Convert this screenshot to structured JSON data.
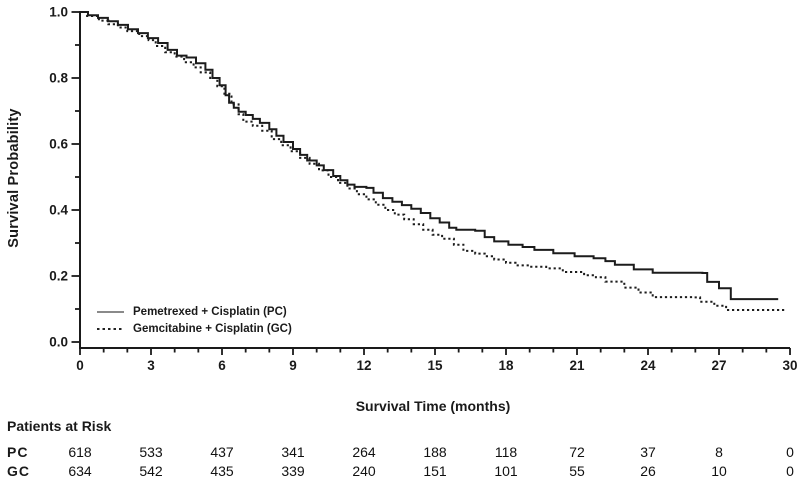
{
  "chart_data": {
    "type": "line",
    "subtype": "kaplan-meier-step",
    "title": "",
    "xlabel": "Survival Time (months)",
    "ylabel": "Survival Probability",
    "xlim": [
      0,
      30
    ],
    "ylim": [
      0.0,
      1.0
    ],
    "grid": false,
    "x_major_ticks": [
      0,
      3,
      6,
      9,
      12,
      15,
      18,
      21,
      24,
      27,
      30
    ],
    "x_minor_step": 1,
    "y_major_tick_labels": [
      "0.0",
      "0.2",
      "0.4",
      "0.6",
      "0.8",
      "1.0"
    ],
    "y_major_ticks": [
      0.0,
      0.2,
      0.4,
      0.6,
      0.8,
      1.0
    ],
    "y_minor_ticks": [
      0.1,
      0.3,
      0.5,
      0.7,
      0.9
    ],
    "legend": {
      "position": "lower-left",
      "entries": [
        {
          "label": "Pemetrexed + Cisplatin (PC)",
          "style": "solid"
        },
        {
          "label": "Gemcitabine + Cisplatin (GC)",
          "style": "dotted"
        }
      ]
    },
    "series": [
      {
        "name": "PC",
        "label": "Pemetrexed + Cisplatin (PC)",
        "style": "solid",
        "points": [
          [
            0,
            1.0
          ],
          [
            0.34,
            0.99
          ],
          [
            0.76,
            0.982
          ],
          [
            1.18,
            0.972
          ],
          [
            1.6,
            0.961
          ],
          [
            2.03,
            0.948
          ],
          [
            2.45,
            0.936
          ],
          [
            2.87,
            0.921
          ],
          [
            3.3,
            0.906
          ],
          [
            3.7,
            0.885
          ],
          [
            4.1,
            0.868
          ],
          [
            4.5,
            0.862
          ],
          [
            4.9,
            0.845
          ],
          [
            5.3,
            0.825
          ],
          [
            5.6,
            0.8
          ],
          [
            5.9,
            0.778
          ],
          [
            6.15,
            0.748
          ],
          [
            6.3,
            0.725
          ],
          [
            6.5,
            0.71
          ],
          [
            6.7,
            0.698
          ],
          [
            7.0,
            0.688
          ],
          [
            7.3,
            0.676
          ],
          [
            7.6,
            0.664
          ],
          [
            8.0,
            0.645
          ],
          [
            8.3,
            0.625
          ],
          [
            8.6,
            0.606
          ],
          [
            9.0,
            0.585
          ],
          [
            9.3,
            0.567
          ],
          [
            9.6,
            0.55
          ],
          [
            10.0,
            0.535
          ],
          [
            10.3,
            0.521
          ],
          [
            10.7,
            0.503
          ],
          [
            11.0,
            0.49
          ],
          [
            11.3,
            0.477
          ],
          [
            11.6,
            0.47
          ],
          [
            12.1,
            0.467
          ],
          [
            12.4,
            0.452
          ],
          [
            12.8,
            0.436
          ],
          [
            13.2,
            0.425
          ],
          [
            13.6,
            0.415
          ],
          [
            14.0,
            0.404
          ],
          [
            14.4,
            0.391
          ],
          [
            14.8,
            0.375
          ],
          [
            15.2,
            0.362
          ],
          [
            15.6,
            0.346
          ],
          [
            15.9,
            0.34
          ],
          [
            16.7,
            0.337
          ],
          [
            17.1,
            0.318
          ],
          [
            17.5,
            0.305
          ],
          [
            18.1,
            0.295
          ],
          [
            18.7,
            0.288
          ],
          [
            19.2,
            0.279
          ],
          [
            20.0,
            0.269
          ],
          [
            20.9,
            0.26
          ],
          [
            21.7,
            0.254
          ],
          [
            22.2,
            0.245
          ],
          [
            22.6,
            0.234
          ],
          [
            23.4,
            0.22
          ],
          [
            24.2,
            0.21
          ],
          [
            26.3,
            0.209
          ],
          [
            26.5,
            0.182
          ],
          [
            27.0,
            0.163
          ],
          [
            27.5,
            0.13
          ],
          [
            29.5,
            0.13
          ]
        ]
      },
      {
        "name": "GC",
        "label": "Gemcitabine + Cisplatin (GC)",
        "style": "dotted",
        "points": [
          [
            0,
            1.0
          ],
          [
            0.3,
            0.988
          ],
          [
            0.8,
            0.974
          ],
          [
            1.2,
            0.963
          ],
          [
            1.6,
            0.953
          ],
          [
            2.0,
            0.942
          ],
          [
            2.5,
            0.927
          ],
          [
            2.9,
            0.915
          ],
          [
            3.2,
            0.897
          ],
          [
            3.6,
            0.878
          ],
          [
            4.0,
            0.865
          ],
          [
            4.4,
            0.848
          ],
          [
            4.8,
            0.832
          ],
          [
            5.1,
            0.817
          ],
          [
            5.5,
            0.8
          ],
          [
            5.8,
            0.775
          ],
          [
            6.1,
            0.752
          ],
          [
            6.4,
            0.72
          ],
          [
            6.7,
            0.69
          ],
          [
            6.9,
            0.668
          ],
          [
            7.3,
            0.655
          ],
          [
            7.7,
            0.64
          ],
          [
            8.1,
            0.615
          ],
          [
            8.5,
            0.596
          ],
          [
            8.9,
            0.578
          ],
          [
            9.3,
            0.558
          ],
          [
            9.7,
            0.54
          ],
          [
            10.1,
            0.52
          ],
          [
            10.5,
            0.5
          ],
          [
            10.9,
            0.482
          ],
          [
            11.3,
            0.465
          ],
          [
            11.7,
            0.448
          ],
          [
            12.1,
            0.432
          ],
          [
            12.5,
            0.416
          ],
          [
            12.9,
            0.4
          ],
          [
            13.3,
            0.386
          ],
          [
            13.7,
            0.372
          ],
          [
            14.1,
            0.357
          ],
          [
            14.5,
            0.34
          ],
          [
            14.9,
            0.325
          ],
          [
            15.3,
            0.313
          ],
          [
            15.8,
            0.295
          ],
          [
            16.2,
            0.276
          ],
          [
            16.7,
            0.268
          ],
          [
            17.1,
            0.26
          ],
          [
            17.5,
            0.25
          ],
          [
            18.0,
            0.24
          ],
          [
            18.4,
            0.232
          ],
          [
            19.0,
            0.228
          ],
          [
            19.7,
            0.223
          ],
          [
            20.4,
            0.212
          ],
          [
            21.3,
            0.202
          ],
          [
            21.8,
            0.196
          ],
          [
            22.2,
            0.183
          ],
          [
            23.0,
            0.165
          ],
          [
            23.6,
            0.15
          ],
          [
            24.2,
            0.136
          ],
          [
            25.9,
            0.135
          ],
          [
            26.2,
            0.122
          ],
          [
            26.8,
            0.11
          ],
          [
            27.3,
            0.097
          ],
          [
            29.8,
            0.097
          ]
        ]
      }
    ]
  },
  "risk_table": {
    "title": "Patients at Risk",
    "time_points": [
      0,
      3,
      6,
      9,
      12,
      15,
      18,
      21,
      24,
      27,
      30
    ],
    "rows": [
      {
        "label": "PC",
        "values": [
          "618",
          "533",
          "437",
          "341",
          "264",
          "188",
          "118",
          "72",
          "37",
          "8",
          "0"
        ]
      },
      {
        "label": "GC",
        "values": [
          "634",
          "542",
          "435",
          "339",
          "240",
          "151",
          "101",
          "55",
          "26",
          "10",
          "0"
        ]
      }
    ]
  },
  "colors": {
    "background": "#ffffff",
    "curve": "#1c1c1c",
    "axis": "#1a1a1a",
    "text": "#1a1a1a",
    "legend_solid_sample": "#8a8a8a",
    "legend_dotted_sample": "#222222"
  }
}
